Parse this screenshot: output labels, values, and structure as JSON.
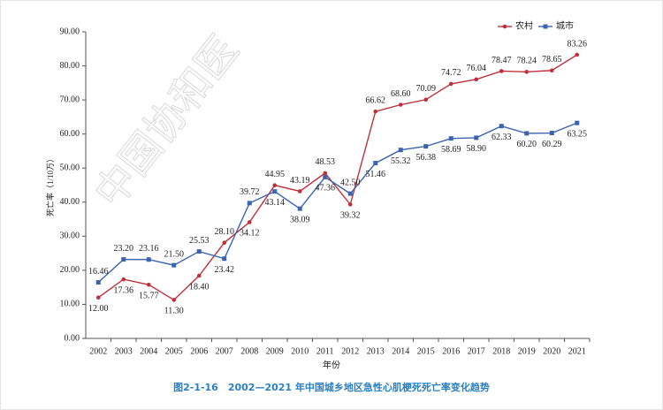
{
  "chart_data": {
    "type": "line",
    "watermark": "中国协和医",
    "caption": "图2-1-16　2002—2021 年中国城乡地区急性心肌梗死死亡率变化趋势",
    "x_label": "年份",
    "y_label": "死亡率（1/10万）",
    "categories": [
      "2002",
      "2003",
      "2004",
      "2005",
      "2006",
      "2007",
      "2008",
      "2009",
      "2010",
      "2011",
      "2012",
      "2013",
      "2014",
      "2015",
      "2016",
      "2017",
      "2018",
      "2019",
      "2020",
      "2021"
    ],
    "series": [
      {
        "name": "农村",
        "color": "#c0303a",
        "marker": "circle",
        "values": [
          12.0,
          17.36,
          15.77,
          11.3,
          18.4,
          28.1,
          34.12,
          44.95,
          43.19,
          48.53,
          39.32,
          66.62,
          68.6,
          70.09,
          74.72,
          76.04,
          78.47,
          78.24,
          78.65,
          83.26
        ],
        "value_labels": [
          "12.00",
          "17.36",
          "15.77",
          "11.30",
          "18.40",
          "28.10",
          "34.12",
          "44.95",
          "43.19",
          "48.53",
          "39.32",
          "66.62",
          "68.60",
          "70.09",
          "74.72",
          "76.04",
          "78.47",
          "78.24",
          "78.65",
          "83.26"
        ]
      },
      {
        "name": "城市",
        "color": "#3a63b0",
        "marker": "square",
        "values": [
          16.46,
          23.2,
          23.16,
          21.5,
          25.53,
          23.42,
          39.72,
          43.14,
          38.09,
          47.36,
          42.5,
          51.46,
          55.32,
          56.38,
          58.69,
          58.9,
          62.33,
          60.2,
          60.29,
          63.25
        ],
        "value_labels": [
          "16.46",
          "23.20",
          "23.16",
          "21.50",
          "25.53",
          "23.42",
          "39.72",
          "43.14",
          "38.09",
          "47.36",
          "42.50",
          "51.46",
          "55.32",
          "56.38",
          "58.69",
          "58.90",
          "62.33",
          "60.20",
          "60.29",
          "63.25"
        ]
      }
    ],
    "ylim": [
      0,
      90
    ],
    "yticks": [
      {
        "value": 0,
        "label": "0.00"
      },
      {
        "value": 10,
        "label": "10.00"
      },
      {
        "value": 20,
        "label": "20.00"
      },
      {
        "value": 30,
        "label": "30.00"
      },
      {
        "value": 40,
        "label": "40.00"
      },
      {
        "value": 50,
        "label": "50.00"
      },
      {
        "value": 60,
        "label": "60.00"
      },
      {
        "value": 70,
        "label": "70.00"
      },
      {
        "value": 80,
        "label": "80.00"
      },
      {
        "value": 90,
        "label": "90.00"
      }
    ],
    "legend": "top-right"
  }
}
